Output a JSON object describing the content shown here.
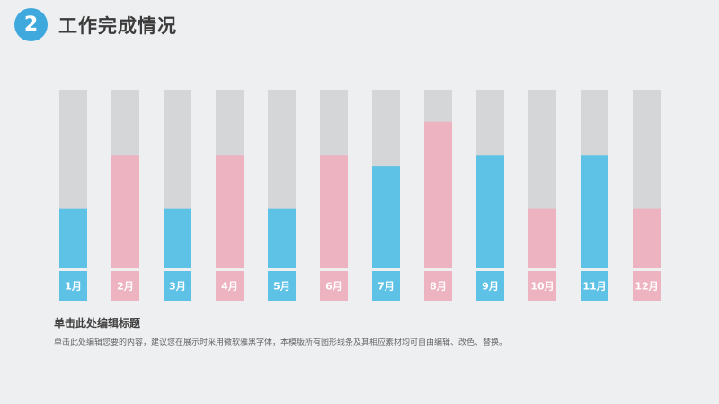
{
  "header": {
    "number": "2",
    "title": "工作完成情况"
  },
  "colors": {
    "badge": "#3fa9dd",
    "blue": "#5ec2e6",
    "pink": "#eeb3c1",
    "track": "#d4d6d8",
    "background": "#eeeff1"
  },
  "chart_data": {
    "type": "bar",
    "title": "",
    "xlabel": "",
    "ylabel": "",
    "ylim": [
      0,
      100
    ],
    "grid": false,
    "categories": [
      "1月",
      "2月",
      "3月",
      "4月",
      "5月",
      "6月",
      "7月",
      "8月",
      "9月",
      "10月",
      "11月",
      "12月"
    ],
    "values": [
      33,
      63,
      33,
      63,
      33,
      63,
      57,
      82,
      63,
      33,
      63,
      33
    ],
    "bar_colors": [
      "blue",
      "pink",
      "blue",
      "pink",
      "blue",
      "pink",
      "blue",
      "pink",
      "blue",
      "pink",
      "blue",
      "pink"
    ]
  },
  "text_block": {
    "heading": "单击此处编辑标题",
    "body": "单击此处编辑您要的内容，建议您在展示时采用微软雅黑字体，本模版所有图形线条及其相应素材均可自由编辑、改色、替换。"
  }
}
